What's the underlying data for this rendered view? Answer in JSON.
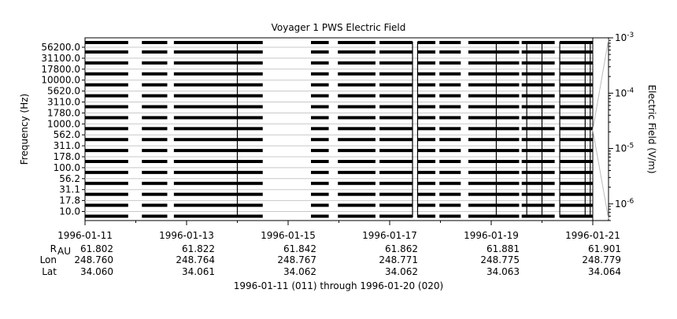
{
  "chart_data": {
    "type": "heatmap",
    "title": "Voyager 1 PWS Electric Field",
    "ylabel": "Frequency (Hz)",
    "y_ticks": [
      "56200.0",
      "31100.0",
      "17800.0",
      "10000.0",
      "5620.0",
      "3110.0",
      "1780.0",
      "1000.0",
      "562.0",
      "311.0",
      "178.0",
      "100.0",
      "56.2",
      "31.1",
      "17.8",
      "10.0"
    ],
    "x_ticks": [
      "1996-01-11",
      "1996-01-13",
      "1996-01-15",
      "1996-01-17",
      "1996-01-19",
      "1996-01-21"
    ],
    "x_range": [
      "1996-01-11",
      "1996-01-21"
    ],
    "ephemeris": {
      "labels": [
        "R_AU",
        "Lon",
        "Lat"
      ],
      "R_AU": [
        "61.802",
        "61.822",
        "61.842",
        "61.862",
        "61.881",
        "61.901"
      ],
      "Lon": [
        "248.760",
        "248.764",
        "248.767",
        "248.771",
        "248.775",
        "248.779"
      ],
      "Lat": [
        "34.060",
        "34.061",
        "34.062",
        "34.062",
        "34.063",
        "34.064"
      ]
    },
    "colorbar": {
      "label": "Electric Field (V/m)",
      "scale": "log",
      "range": [
        5e-07,
        0.001
      ],
      "ticks": [
        {
          "value": 0.001,
          "mantissa": "10",
          "exponent": "-3"
        },
        {
          "value": 0.0001,
          "mantissa": "10",
          "exponent": "-4"
        },
        {
          "value": 1e-05,
          "mantissa": "10",
          "exponent": "-5"
        },
        {
          "value": 1e-06,
          "mantissa": "10",
          "exponent": "-6"
        }
      ]
    },
    "data_coverage_days": [
      [
        0.0,
        0.85
      ],
      [
        1.12,
        1.62
      ],
      [
        1.75,
        3.5
      ],
      [
        4.45,
        4.8
      ],
      [
        4.98,
        5.72
      ],
      [
        5.8,
        6.45
      ],
      [
        6.55,
        6.9
      ],
      [
        6.98,
        7.4
      ],
      [
        7.55,
        8.55
      ],
      [
        8.6,
        9.25
      ],
      [
        9.35,
        10.0
      ]
    ],
    "spike_days": [
      3.0,
      6.45,
      6.55,
      8.1,
      8.7,
      9.0,
      9.35,
      9.85,
      9.95
    ]
  },
  "footer": {
    "date_range": "1996-01-11 (011) through 1996-01-20 (020)"
  }
}
